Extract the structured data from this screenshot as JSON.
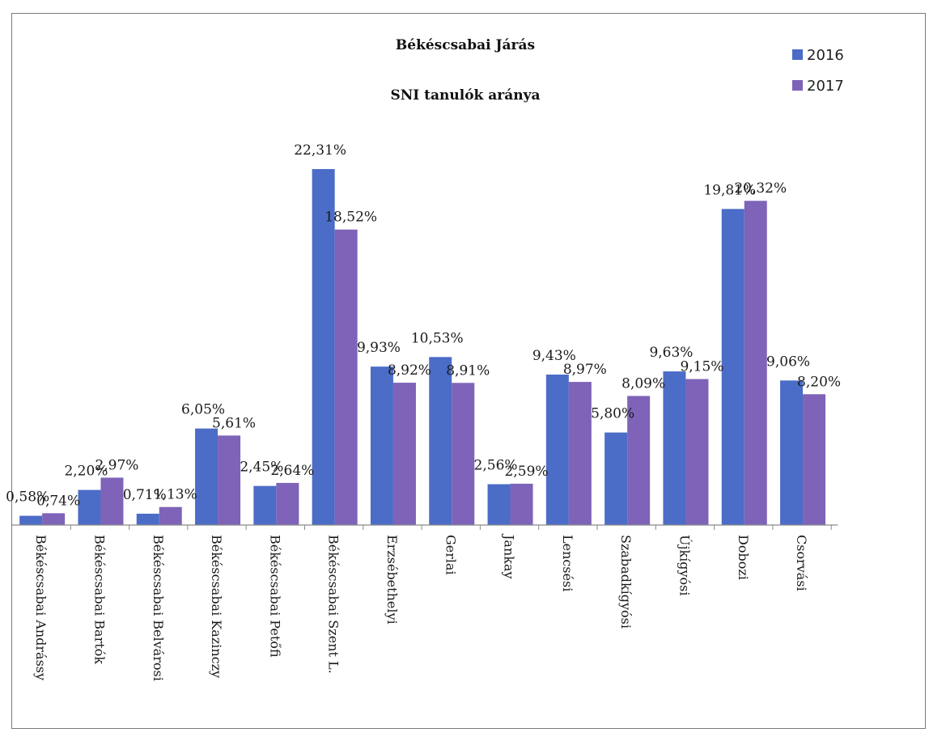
{
  "chart_data": {
    "type": "bar",
    "title": "Békéscsabai Járás",
    "subtitle": "SNI tanulók aránya",
    "categories": [
      "Békéscsabai Andrássy",
      "Békéscsabai Bartók",
      "Békéscsabai Belvárosi",
      "Békéscsabai Kazinczy",
      "Békéscsabai Petőfi",
      "Békéscsabai Szent L.",
      "Erzsébethelyi",
      "Gerlai",
      "Jankay",
      "Lencsési",
      "Szabadkígyósi",
      "Újkígyósi",
      "Dobozi",
      "Csorvási"
    ],
    "series": [
      {
        "name": "2016",
        "color": "#4b6cc7",
        "values": [
          0.58,
          2.2,
          0.71,
          6.05,
          2.45,
          22.31,
          9.93,
          10.53,
          2.56,
          9.43,
          5.8,
          9.63,
          19.81,
          9.06
        ],
        "labels": [
          "0,58%",
          "2,20%",
          "0,71%",
          "6,05%",
          "2,45%",
          "22,31%",
          "9,93%",
          "10,53%",
          "2,56%",
          "9,43%",
          "5,80%",
          "9,63%",
          "19,81%",
          "9,06%"
        ]
      },
      {
        "name": "2017",
        "color": "#7e63b8",
        "values": [
          0.74,
          2.97,
          1.13,
          5.61,
          2.64,
          18.52,
          8.92,
          8.91,
          2.59,
          8.97,
          8.09,
          9.15,
          20.32,
          8.2
        ],
        "labels": [
          "0,74%",
          "2,97%",
          "1,13%",
          "5,61%",
          "2,64%",
          "18,52%",
          "8,92%",
          "8,91%",
          "2,59%",
          "8,97%",
          "8,09%",
          "9,15%",
          "20,32%",
          "8,20%"
        ]
      }
    ],
    "ylim": [
      0,
      22.31
    ],
    "grid": false,
    "legend_position": "top-right"
  }
}
